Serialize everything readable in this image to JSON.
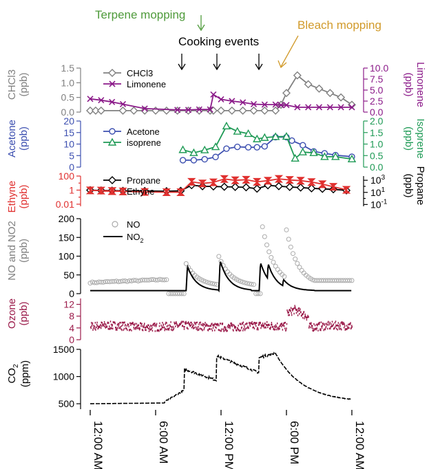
{
  "annotations": {
    "terpene": "Terpene mopping",
    "cooking": "Cooking events",
    "bleach": "Bleach mopping"
  },
  "colors": {
    "gray": "#808080",
    "purple": "#8B1A89",
    "blue": "#3C4FB0",
    "green": "#1E9A55",
    "red": "#E0302F",
    "black": "#000000",
    "maroon": "#9B1B4A",
    "terpene": "#4E9A3A",
    "bleach": "#D19A2A"
  },
  "x_ticks": [
    "12:00 AM",
    "6:00 AM",
    "12:00 PM",
    "6:00 PM",
    "12:00 AM"
  ],
  "chart_data": [
    {
      "type": "line",
      "panel": "chcl3-limonene",
      "ylabel_left": [
        "CHCl3",
        "(ppb)"
      ],
      "ylabel_right": [
        "Limonene",
        "(ppb)"
      ],
      "ylim_left": [
        0,
        1.5
      ],
      "ylim_right": [
        0,
        10
      ],
      "left_ticks": [
        "0.0",
        "0.5",
        "1.0",
        "1.5"
      ],
      "right_ticks": [
        "0.0",
        "2.5",
        "5.0",
        "7.5",
        "10.0"
      ],
      "series": [
        {
          "name": "CHCl3",
          "axis": "left",
          "color": "gray",
          "marker": "diamond",
          "x": [
            0,
            0.5,
            1,
            3,
            4,
            5,
            6,
            7,
            8,
            9,
            10,
            11,
            11.3,
            12,
            13,
            14,
            15,
            16,
            17,
            17.5,
            18,
            19,
            20,
            21,
            22,
            23,
            24
          ],
          "y": [
            0.05,
            0.05,
            0.05,
            0.05,
            0.05,
            0.05,
            0.05,
            0.05,
            0.05,
            0.05,
            0.05,
            0.05,
            0.05,
            0.05,
            0.05,
            0.05,
            0.05,
            0.05,
            0.05,
            0.25,
            0.65,
            1.25,
            0.95,
            0.8,
            0.65,
            0.5,
            0.25
          ]
        },
        {
          "name": "Limonene",
          "axis": "right",
          "color": "purple",
          "marker": "x",
          "x": [
            0,
            1,
            2,
            3,
            5,
            8,
            9,
            10,
            11,
            11.3,
            12,
            13,
            14,
            15,
            16,
            17,
            17.5,
            18,
            19,
            20,
            21,
            22,
            23,
            24
          ],
          "y": [
            3.0,
            2.7,
            2.3,
            1.8,
            0.8,
            0.5,
            0.5,
            0.6,
            0.6,
            4.0,
            2.9,
            2.5,
            2.2,
            1.8,
            1.7,
            1.7,
            1.6,
            1.6,
            1.1,
            1.1,
            1.1,
            1.1,
            1.1,
            1.1
          ]
        }
      ]
    },
    {
      "type": "line",
      "panel": "acetone-isoprene",
      "ylabel_left": [
        "Acetone",
        "(ppb)"
      ],
      "ylabel_right": [
        "Isoprene",
        "(ppb)"
      ],
      "ylim_left": [
        0,
        20
      ],
      "ylim_right": [
        0,
        2.0
      ],
      "left_ticks": [
        "0",
        "5",
        "10",
        "15",
        "20"
      ],
      "right_ticks": [
        "0.0",
        "0.5",
        "1.0",
        "1.5",
        "2.0"
      ],
      "series": [
        {
          "name": "Acetone",
          "axis": "left",
          "color": "blue",
          "marker": "circle",
          "x": [
            8.5,
            9.5,
            10.5,
            11.5,
            12.5,
            13.5,
            14.5,
            15.3,
            16,
            17,
            18,
            18.5,
            19.5,
            20.5,
            21.5,
            22.5,
            24
          ],
          "y": [
            3.0,
            3.0,
            3.4,
            4.4,
            8.0,
            8.8,
            8.6,
            8.6,
            9.0,
            13.0,
            13.0,
            11.5,
            9.5,
            6.8,
            6.0,
            5.2,
            4.5
          ]
        },
        {
          "name": "isoprene",
          "axis": "right",
          "color": "green",
          "marker": "triangle",
          "x": [
            8.5,
            9.5,
            10.5,
            11.5,
            12.5,
            13.5,
            14.5,
            15.3,
            16,
            17,
            18,
            18.8,
            19.5,
            20.5,
            21.5,
            22.5,
            24
          ],
          "y": [
            0.75,
            0.62,
            0.74,
            0.88,
            1.78,
            1.55,
            1.45,
            1.22,
            1.28,
            1.32,
            1.33,
            0.38,
            0.65,
            0.62,
            0.45,
            0.45,
            0.35
          ]
        }
      ]
    },
    {
      "type": "line",
      "panel": "ethyne-propane",
      "ylabel_left": [
        "Ethyne",
        "(ppb)"
      ],
      "ylabel_right": [
        "Propane",
        "(ppb)"
      ],
      "ylim_left": [
        0.005,
        100
      ],
      "ylim_right": [
        0.05,
        5000
      ],
      "log": true,
      "left_ticks": [
        "0.01",
        "1",
        "100"
      ],
      "right_ticks": [
        "-1",
        "1",
        "3"
      ],
      "series": [
        {
          "name": "Propane",
          "axis": "left",
          "color": "black",
          "marker": "diamond",
          "x": [
            0,
            1,
            2,
            3,
            5,
            7,
            8.3,
            9.3,
            10.3,
            11.3,
            12.3,
            13.3,
            14.3,
            15.3,
            16.3,
            17.3,
            18.3,
            19.3,
            20.3,
            21.3,
            22.3,
            23.5
          ],
          "y": [
            1.0,
            0.9,
            0.85,
            0.8,
            0.75,
            0.7,
            0.8,
            5.0,
            3.5,
            3.3,
            3.0,
            2.8,
            2.5,
            1.6,
            4.8,
            3.6,
            2.8,
            2.3,
            1.8,
            1.5,
            1.3,
            0.9
          ]
        },
        {
          "name": "Ethyne",
          "axis": "left",
          "color": "red",
          "marker": "bowtie",
          "x": [
            0,
            1,
            2,
            3,
            5,
            7,
            8.3,
            9.3,
            10.3,
            11.3,
            12.3,
            13.3,
            14.3,
            15.3,
            16.3,
            17.3,
            18.3,
            19.3,
            20.3,
            21.3,
            22.3,
            23.5
          ],
          "y": [
            0.9,
            0.85,
            0.75,
            0.65,
            0.55,
            0.5,
            0.5,
            15.0,
            9.0,
            13.0,
            38.0,
            25.0,
            30.0,
            15.0,
            22.0,
            40.0,
            28.0,
            22.0,
            14.0,
            7.0,
            3.0,
            1.1
          ]
        }
      ]
    },
    {
      "type": "line",
      "panel": "no-no2",
      "ylabel_left": [
        "NO and NO2",
        "(ppb)"
      ],
      "ylim_left": [
        0,
        200
      ],
      "left_ticks": [
        "0",
        "50",
        "100",
        "150",
        "200"
      ],
      "series": [
        {
          "name": "NO",
          "axis": "left",
          "color": "gray",
          "marker": "open-circle"
        },
        {
          "name": "NO2",
          "axis": "left",
          "color": "black",
          "marker": "line"
        }
      ]
    },
    {
      "type": "scatter",
      "panel": "ozone",
      "ylabel_left": [
        "Ozone",
        "(ppb)"
      ],
      "ylim_left": [
        0,
        14
      ],
      "left_ticks": [
        "0",
        "4",
        "8",
        "12"
      ],
      "series": [
        {
          "name": "Ozone",
          "axis": "left",
          "color": "maroon",
          "marker": "dot"
        }
      ]
    },
    {
      "type": "line",
      "panel": "co2",
      "ylabel_left": [
        "CO2",
        "(ppm)"
      ],
      "ylim_left": [
        400,
        1500
      ],
      "left_ticks": [
        "500",
        "1000",
        "1500"
      ],
      "series": [
        {
          "name": "CO2",
          "axis": "left",
          "color": "black",
          "marker": "line"
        }
      ]
    }
  ]
}
